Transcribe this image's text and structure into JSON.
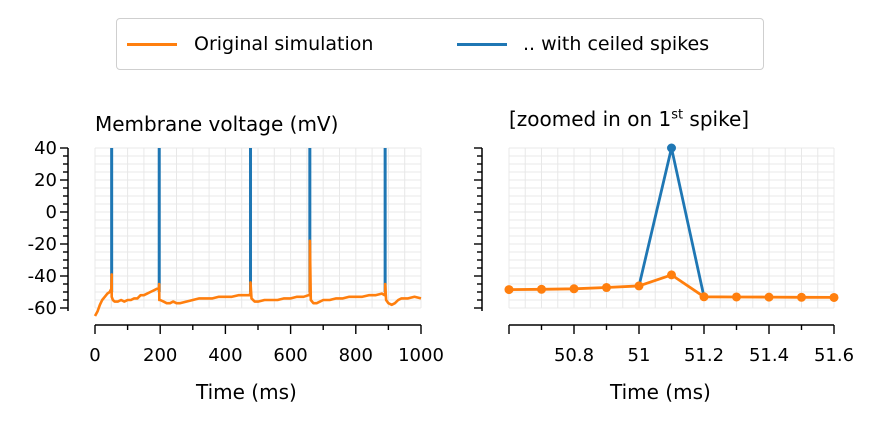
{
  "legend": {
    "items": [
      {
        "label": "Original simulation",
        "color": "#ff7f0e"
      },
      {
        "label": ".. with ceiled spikes",
        "color": "#1f77b4"
      }
    ]
  },
  "colors": {
    "original": "#ff7f0e",
    "ceiled": "#1f77b4"
  },
  "chart_data": [
    {
      "type": "line",
      "title": "Membrane voltage (mV)",
      "xlabel": "Time (ms)",
      "ylabel": "",
      "xlim": [
        0,
        1000
      ],
      "ylim": [
        -75,
        40
      ],
      "x_ticks": [
        "0",
        "200",
        "400",
        "600",
        "800",
        "1000"
      ],
      "y_ticks": [
        "40",
        "20",
        "0",
        "-20",
        "-40",
        "-60"
      ],
      "grid": true,
      "series": [
        {
          "name": "Original simulation",
          "color": "#ff7f0e",
          "x": [
            0,
            8,
            15,
            22,
            30,
            38,
            45,
            50,
            51.1,
            51.2,
            55,
            60,
            70,
            80,
            90,
            100,
            110,
            120,
            130,
            140,
            150,
            160,
            170,
            180,
            190,
            196,
            197,
            197.1,
            200,
            210,
            220,
            230,
            240,
            250,
            260,
            280,
            300,
            320,
            340,
            360,
            380,
            400,
            420,
            440,
            460,
            475,
            477,
            477.1,
            480,
            490,
            500,
            520,
            540,
            560,
            580,
            600,
            620,
            640,
            655,
            659,
            659.1,
            662,
            670,
            680,
            700,
            720,
            740,
            760,
            780,
            800,
            820,
            840,
            860,
            880,
            888,
            890,
            890.1,
            893,
            900,
            910,
            920,
            930,
            940,
            960,
            980,
            1000
          ],
          "y": [
            -65,
            -62,
            -58,
            -55,
            -53,
            -51,
            -50,
            -48,
            -39,
            -53,
            -55,
            -56,
            -56,
            -55,
            -56,
            -55,
            -55,
            -54,
            -54,
            -52,
            -52,
            -51,
            -50,
            -49,
            -48,
            -48,
            -45,
            -55,
            -55,
            -56,
            -57,
            -57,
            -56,
            -57,
            -57,
            -56,
            -55,
            -54,
            -54,
            -54,
            -53,
            -53,
            -53,
            -52,
            -52,
            -52,
            -50,
            -44,
            -54,
            -56,
            -56,
            -55,
            -55,
            -55,
            -54,
            -54,
            -53,
            -53,
            -52,
            -52,
            -18,
            -55,
            -57,
            -57,
            -55,
            -55,
            -54,
            -54,
            -53,
            -53,
            -53,
            -52,
            -52,
            -51,
            -52,
            -52,
            -45,
            -55,
            -57,
            -58,
            -57,
            -55,
            -54,
            -54,
            -53,
            -54
          ]
        },
        {
          "name": ".. with ceiled spikes",
          "color": "#1f77b4",
          "spike_times": [
            51.1,
            197,
            477,
            659,
            890
          ],
          "spike_peak": 40
        }
      ]
    },
    {
      "type": "line",
      "title": "[zoomed in on 1",
      "title_sup": "st",
      "title_suffix": " spike]",
      "xlabel": "Time (ms)",
      "ylabel": "",
      "xlim": [
        50.6,
        51.6
      ],
      "ylim": [
        -75,
        40
      ],
      "x_ticks": [
        "50.8",
        "51",
        "51.2",
        "51.4",
        "51.6"
      ],
      "grid": true,
      "series": [
        {
          "name": "Original simulation",
          "color": "#ff7f0e",
          "x": [
            50.6,
            50.7,
            50.8,
            50.9,
            51.0,
            51.1,
            51.2,
            51.3,
            51.4,
            51.5,
            51.6
          ],
          "y": [
            -48.5,
            -48.3,
            -48,
            -47.2,
            -46.2,
            -39.3,
            -53,
            -53.1,
            -53.2,
            -53.3,
            -53.4
          ]
        },
        {
          "name": ".. with ceiled spikes",
          "color": "#1f77b4",
          "x": [
            51.0,
            51.1,
            51.2
          ],
          "y": [
            -46.2,
            40,
            -53
          ]
        }
      ]
    }
  ]
}
